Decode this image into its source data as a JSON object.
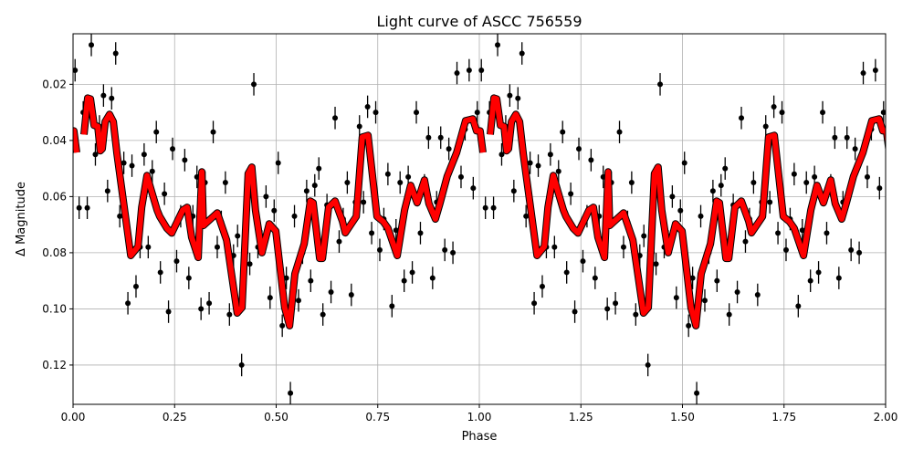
{
  "chart_data": {
    "type": "scatter",
    "title": "Light curve of ASCC 756559",
    "xlabel": "Phase",
    "ylabel": "Δ Magnitude",
    "xlim": [
      0.0,
      2.0
    ],
    "ylim": [
      0.134,
      0.002
    ],
    "y_inverted": true,
    "grid": true,
    "xticks": [
      "0.00",
      "0.25",
      "0.50",
      "0.75",
      "1.00",
      "1.25",
      "1.50",
      "1.75",
      "2.00"
    ],
    "yticks": [
      "0.02",
      "0.04",
      "0.06",
      "0.08",
      "0.10",
      "0.12"
    ],
    "fold_repeats": 2,
    "colors": {
      "points": "#000000",
      "model": "#ff0000",
      "grid": "#b0b0b0"
    },
    "points_error": 0.004,
    "points": [
      [
        0.005,
        0.015
      ],
      [
        0.015,
        0.064
      ],
      [
        0.025,
        0.03
      ],
      [
        0.035,
        0.064
      ],
      [
        0.045,
        0.006
      ],
      [
        0.055,
        0.045
      ],
      [
        0.065,
        0.035
      ],
      [
        0.075,
        0.024
      ],
      [
        0.085,
        0.058
      ],
      [
        0.095,
        0.025
      ],
      [
        0.105,
        0.009
      ],
      [
        0.115,
        0.067
      ],
      [
        0.125,
        0.048
      ],
      [
        0.135,
        0.098
      ],
      [
        0.145,
        0.049
      ],
      [
        0.155,
        0.092
      ],
      [
        0.165,
        0.078
      ],
      [
        0.175,
        0.045
      ],
      [
        0.185,
        0.078
      ],
      [
        0.195,
        0.051
      ],
      [
        0.205,
        0.037
      ],
      [
        0.215,
        0.087
      ],
      [
        0.225,
        0.059
      ],
      [
        0.235,
        0.101
      ],
      [
        0.245,
        0.043
      ],
      [
        0.255,
        0.083
      ],
      [
        0.265,
        0.067
      ],
      [
        0.275,
        0.047
      ],
      [
        0.285,
        0.089
      ],
      [
        0.295,
        0.067
      ],
      [
        0.305,
        0.053
      ],
      [
        0.315,
        0.1
      ],
      [
        0.325,
        0.055
      ],
      [
        0.335,
        0.098
      ],
      [
        0.345,
        0.037
      ],
      [
        0.355,
        0.078
      ],
      [
        0.365,
        0.069
      ],
      [
        0.375,
        0.055
      ],
      [
        0.385,
        0.102
      ],
      [
        0.395,
        0.081
      ],
      [
        0.405,
        0.074
      ],
      [
        0.415,
        0.12
      ],
      [
        0.425,
        0.08
      ],
      [
        0.435,
        0.084
      ],
      [
        0.445,
        0.02
      ],
      [
        0.455,
        0.078
      ],
      [
        0.465,
        0.076
      ],
      [
        0.475,
        0.06
      ],
      [
        0.485,
        0.096
      ],
      [
        0.495,
        0.065
      ],
      [
        0.505,
        0.048
      ],
      [
        0.515,
        0.106
      ],
      [
        0.525,
        0.089
      ],
      [
        0.535,
        0.13
      ],
      [
        0.545,
        0.067
      ],
      [
        0.555,
        0.097
      ],
      [
        0.565,
        0.08
      ],
      [
        0.575,
        0.058
      ],
      [
        0.585,
        0.09
      ],
      [
        0.595,
        0.056
      ],
      [
        0.605,
        0.05
      ],
      [
        0.615,
        0.102
      ],
      [
        0.625,
        0.063
      ],
      [
        0.635,
        0.094
      ],
      [
        0.645,
        0.032
      ],
      [
        0.655,
        0.076
      ],
      [
        0.665,
        0.068
      ],
      [
        0.675,
        0.055
      ],
      [
        0.685,
        0.095
      ],
      [
        0.695,
        0.062
      ],
      [
        0.705,
        0.035
      ],
      [
        0.715,
        0.062
      ],
      [
        0.725,
        0.028
      ],
      [
        0.735,
        0.073
      ],
      [
        0.745,
        0.03
      ],
      [
        0.755,
        0.079
      ],
      [
        0.765,
        0.068
      ],
      [
        0.775,
        0.052
      ],
      [
        0.785,
        0.099
      ],
      [
        0.795,
        0.072
      ],
      [
        0.805,
        0.055
      ],
      [
        0.815,
        0.09
      ],
      [
        0.825,
        0.053
      ],
      [
        0.835,
        0.087
      ],
      [
        0.845,
        0.03
      ],
      [
        0.855,
        0.073
      ],
      [
        0.865,
        0.056
      ],
      [
        0.875,
        0.039
      ],
      [
        0.885,
        0.089
      ],
      [
        0.895,
        0.062
      ],
      [
        0.905,
        0.039
      ],
      [
        0.915,
        0.079
      ],
      [
        0.925,
        0.043
      ],
      [
        0.935,
        0.08
      ],
      [
        0.945,
        0.016
      ],
      [
        0.955,
        0.053
      ],
      [
        0.965,
        0.036
      ],
      [
        0.975,
        0.015
      ],
      [
        0.985,
        0.057
      ],
      [
        0.995,
        0.03
      ]
    ],
    "model": [
      [
        0.027,
        0.0379
      ],
      [
        0.036,
        0.0249
      ],
      [
        0.043,
        0.0252
      ],
      [
        0.052,
        0.0346
      ],
      [
        0.061,
        0.035
      ],
      [
        0.067,
        0.0437
      ],
      [
        0.072,
        0.043
      ],
      [
        0.079,
        0.0333
      ],
      [
        0.09,
        0.0307
      ],
      [
        0.099,
        0.0333
      ],
      [
        0.108,
        0.0447
      ],
      [
        0.142,
        0.081
      ],
      [
        0.16,
        0.0778
      ],
      [
        0.169,
        0.0638
      ],
      [
        0.182,
        0.0525
      ],
      [
        0.193,
        0.058
      ],
      [
        0.207,
        0.0648
      ],
      [
        0.213,
        0.067
      ],
      [
        0.231,
        0.0713
      ],
      [
        0.243,
        0.073
      ],
      [
        0.27,
        0.0648
      ],
      [
        0.281,
        0.0638
      ],
      [
        0.292,
        0.0745
      ],
      [
        0.308,
        0.0817
      ],
      [
        0.317,
        0.0512
      ],
      [
        0.321,
        0.0703
      ],
      [
        0.355,
        0.0658
      ],
      [
        0.378,
        0.0755
      ],
      [
        0.404,
        0.1015
      ],
      [
        0.416,
        0.0995
      ],
      [
        0.431,
        0.0518
      ],
      [
        0.44,
        0.0495
      ],
      [
        0.449,
        0.0648
      ],
      [
        0.465,
        0.08
      ],
      [
        0.483,
        0.0697
      ],
      [
        0.499,
        0.0723
      ],
      [
        0.521,
        0.0995
      ],
      [
        0.533,
        0.106
      ],
      [
        0.546,
        0.0875
      ],
      [
        0.569,
        0.0768
      ],
      [
        0.584,
        0.0616
      ],
      [
        0.591,
        0.0622
      ],
      [
        0.607,
        0.082
      ],
      [
        0.614,
        0.082
      ],
      [
        0.629,
        0.0638
      ],
      [
        0.645,
        0.0616
      ],
      [
        0.663,
        0.0687
      ],
      [
        0.67,
        0.0729
      ],
      [
        0.697,
        0.0671
      ],
      [
        0.712,
        0.0388
      ],
      [
        0.726,
        0.0382
      ],
      [
        0.748,
        0.0671
      ],
      [
        0.764,
        0.069
      ],
      [
        0.775,
        0.0713
      ],
      [
        0.798,
        0.081
      ],
      [
        0.816,
        0.0648
      ],
      [
        0.831,
        0.056
      ],
      [
        0.847,
        0.0622
      ],
      [
        0.865,
        0.0541
      ],
      [
        0.876,
        0.0625
      ],
      [
        0.892,
        0.068
      ],
      [
        0.903,
        0.0625
      ],
      [
        0.921,
        0.0528
      ],
      [
        0.944,
        0.0444
      ],
      [
        0.966,
        0.033
      ],
      [
        0.984,
        0.0323
      ],
      [
        0.993,
        0.0366
      ],
      [
        1.002,
        0.0366
      ],
      [
        1.009,
        0.0443
      ]
    ]
  }
}
